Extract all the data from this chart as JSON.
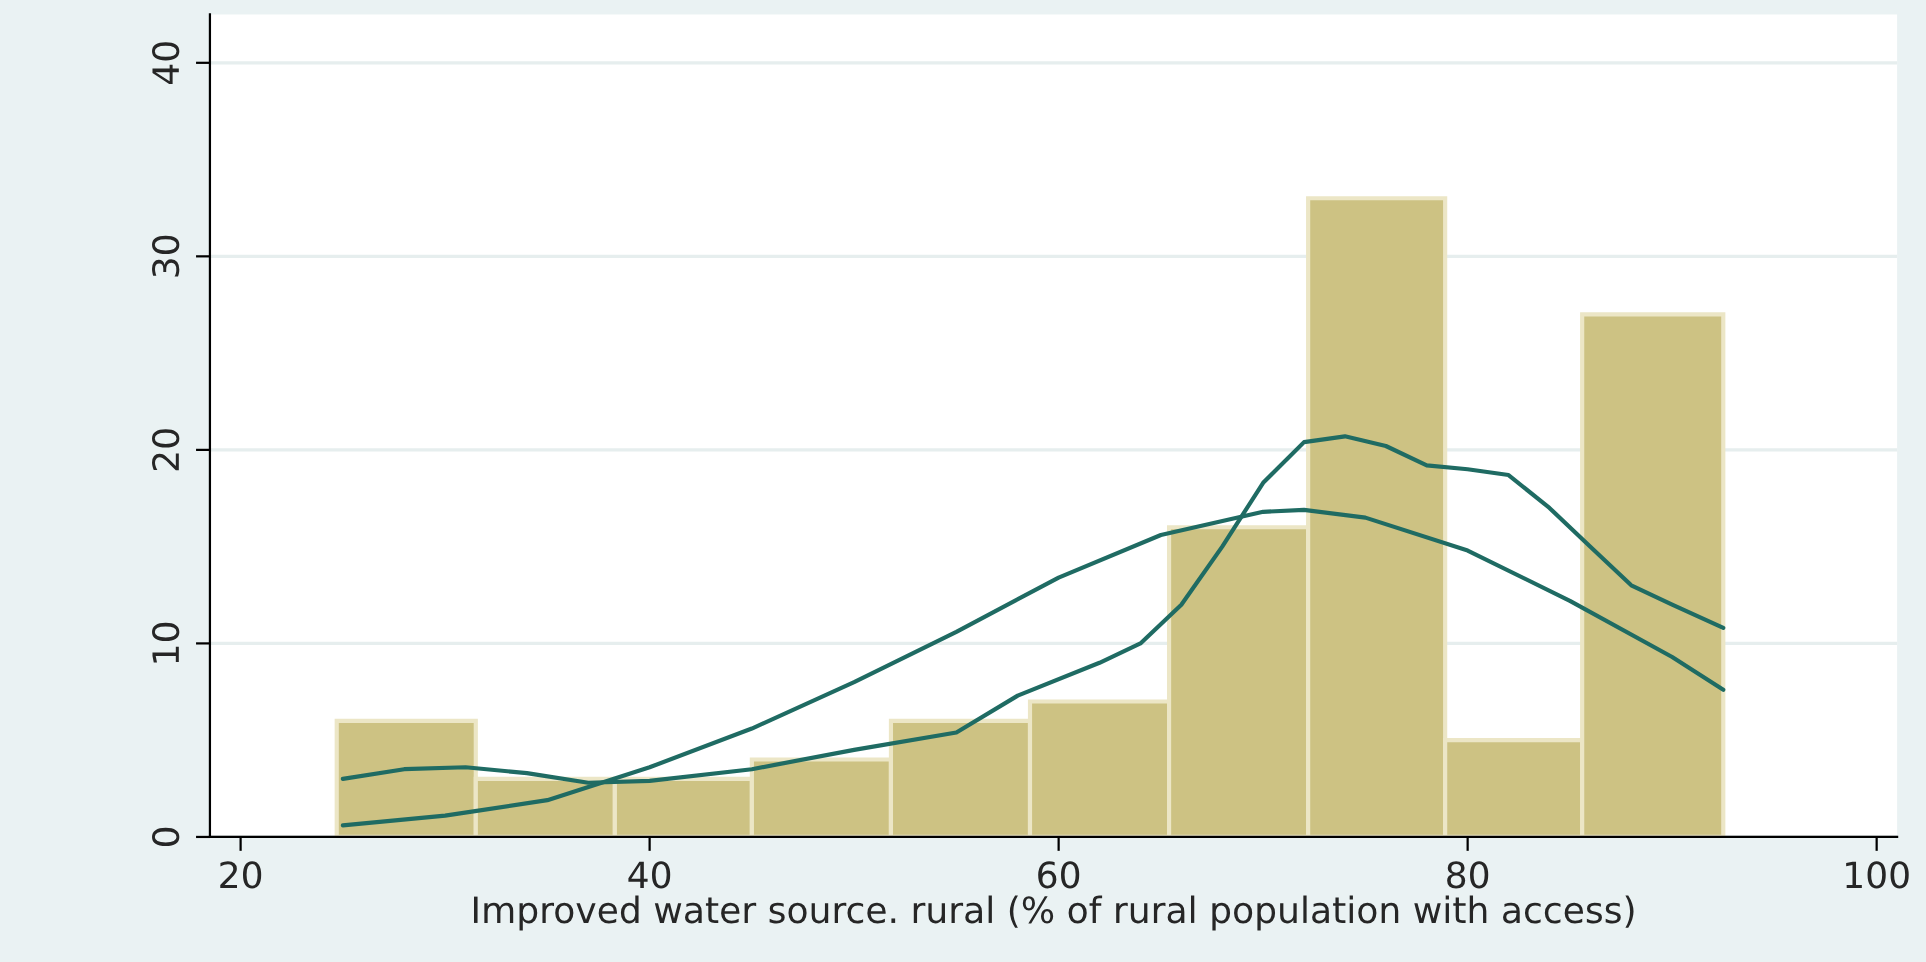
{
  "chart_data": {
    "type": "histogram",
    "xlabel": "Improved water source. rural (% of rural population with access)",
    "bins": [
      24.7,
      31.5,
      38.3,
      45.0,
      51.8,
      58.6,
      65.4,
      72.2,
      78.9,
      85.6,
      92.5
    ],
    "values": [
      6,
      3,
      3,
      4,
      6,
      7,
      16,
      33,
      5,
      27
    ],
    "color": "#cdc283",
    "series": [
      {
        "type": "line",
        "color": "#1f6b63",
        "x": [
          25,
          30,
          35,
          40,
          45,
          50,
          55,
          60,
          65,
          70,
          72,
          75,
          80,
          85,
          90,
          92.5
        ],
        "values": [
          0.6,
          1.1,
          1.9,
          3.6,
          5.6,
          8,
          10.6,
          13.4,
          15.6,
          16.8,
          16.9,
          16.5,
          14.8,
          12.2,
          9.3,
          7.6
        ]
      },
      {
        "type": "line",
        "color": "#1f6b63",
        "x": [
          25,
          28,
          31,
          34,
          37,
          40,
          45,
          50,
          55,
          58,
          62,
          64,
          66,
          68,
          70,
          72,
          74,
          76,
          78,
          80,
          82,
          84,
          86,
          88,
          90,
          92.5
        ],
        "values": [
          3.0,
          3.5,
          3.6,
          3.3,
          2.8,
          2.9,
          3.5,
          4.5,
          5.4,
          7.3,
          9.0,
          10.0,
          12.0,
          15,
          18.3,
          20.4,
          20.7,
          20.2,
          19.2,
          19.0,
          18.7,
          17,
          15,
          13,
          12,
          10.8
        ]
      }
    ],
    "xlim": [
      18.5,
      101
    ],
    "ylim": [
      0,
      42.5
    ],
    "xticks": [
      20,
      40,
      60,
      80,
      100
    ],
    "yticks": [
      0,
      10,
      20,
      30,
      40
    ],
    "grid": "y",
    "marker": "none",
    "line_style": "solid"
  }
}
